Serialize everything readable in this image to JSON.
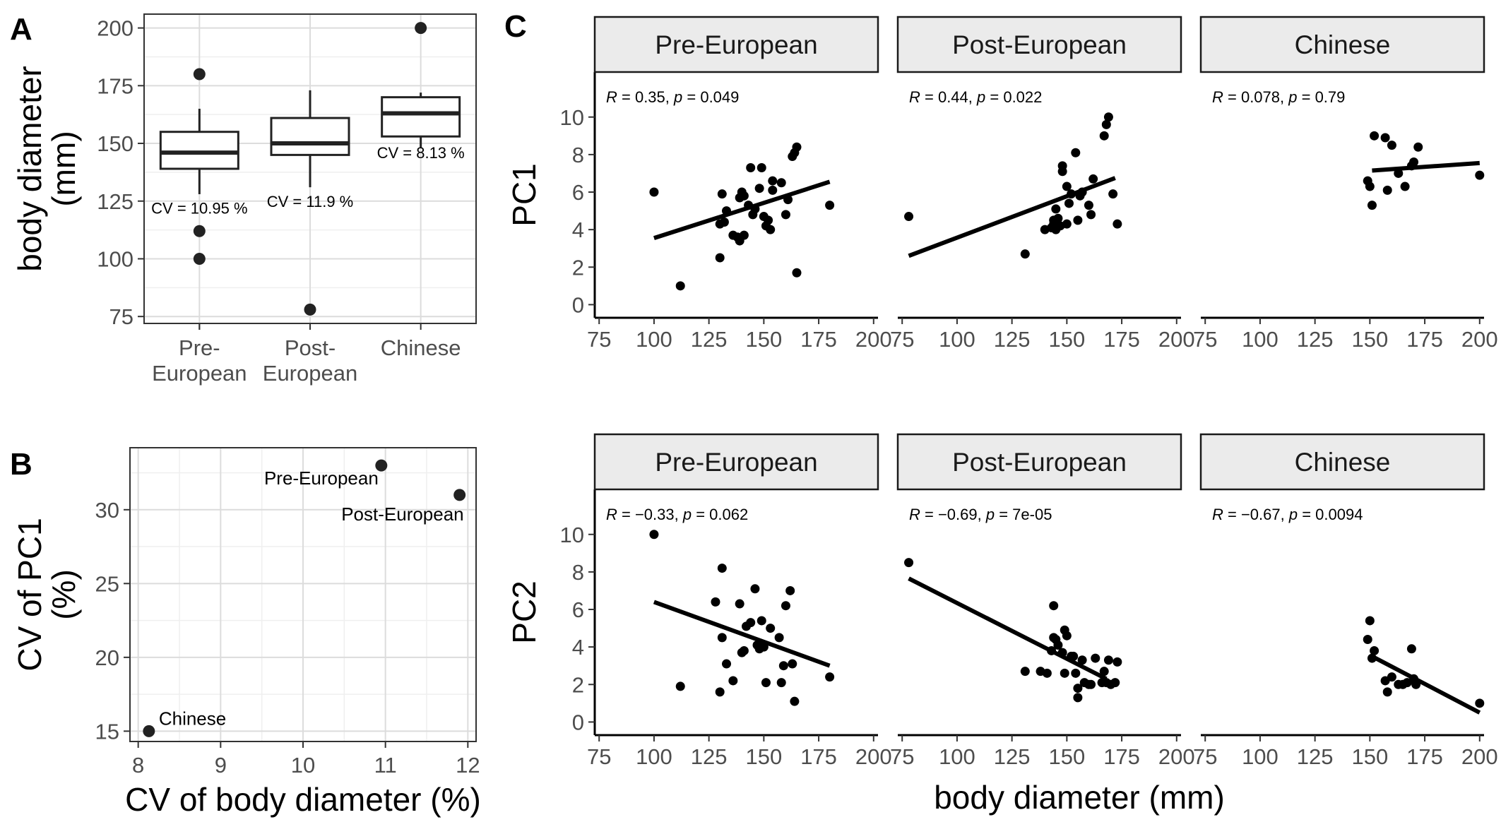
{
  "panel_tags": {
    "a": "A",
    "b": "B",
    "c": "C"
  },
  "shared_xlabel": "body diameter (mm)",
  "chart_data": [
    {
      "id": "A",
      "type": "box",
      "xlabel": "",
      "ylabel_lines": [
        "body diameter",
        "(mm)"
      ],
      "ylim": [
        72,
        206
      ],
      "yticks": [
        75,
        100,
        125,
        150,
        175,
        200
      ],
      "grid": true,
      "categories": [
        {
          "lines": [
            "Pre-",
            "European"
          ],
          "q1": 139,
          "median": 146,
          "q3": 155,
          "whisker_low": 128,
          "whisker_high": 165,
          "outliers": [
            180,
            112,
            100
          ],
          "cv_label": "CV = 10.95 %",
          "cv_y": 122
        },
        {
          "lines": [
            "Post-",
            "European"
          ],
          "q1": 145,
          "median": 150,
          "q3": 161,
          "whisker_low": 131,
          "whisker_high": 173,
          "outliers": [
            78
          ],
          "cv_label": "CV = 11.9 %",
          "cv_y": 125
        },
        {
          "lines": [
            "Chinese"
          ],
          "q1": 153,
          "median": 163,
          "q3": 170,
          "whisker_low": 148,
          "whisker_high": 172,
          "outliers": [
            200
          ],
          "cv_label": "CV = 8.13 %",
          "cv_y": 146
        }
      ]
    },
    {
      "id": "B",
      "type": "scatter",
      "xlabel": "CV of body diameter (%)",
      "ylabel_lines": [
        "CV of PC1",
        "(%)"
      ],
      "xlim": [
        7.9,
        12.1
      ],
      "ylim": [
        14.3,
        34.2
      ],
      "xticks": [
        8,
        9,
        10,
        11,
        12
      ],
      "yticks": [
        15,
        20,
        25,
        30
      ],
      "grid": true,
      "points": [
        {
          "label": "Pre-European",
          "x": 10.95,
          "y": 33.0
        },
        {
          "label": "Post-European",
          "x": 11.9,
          "y": 31.0
        },
        {
          "label": "Chinese",
          "x": 8.13,
          "y": 15.0
        }
      ]
    },
    {
      "id": "C",
      "type": "scatter",
      "facets": [
        "Pre-European",
        "Post-European",
        "Chinese"
      ],
      "xlabel": "body diameter (mm)",
      "xlim": [
        73,
        202
      ],
      "xticks": [
        75,
        100,
        125,
        150,
        175,
        200
      ],
      "ylim": [
        -0.7,
        12.4
      ],
      "yticks": [
        0,
        2,
        4,
        6,
        8,
        10
      ],
      "rows": [
        {
          "ylabel": "PC1",
          "panels": [
            {
              "stat": {
                "r": "R = 0.35,",
                "p": "p = 0.049"
              },
              "fit": [
                [
                  100,
                  3.55
                ],
                [
                  180,
                  6.55
                ]
              ],
              "points": [
                [
                  100,
                  6.0
                ],
                [
                  112,
                  1.0
                ],
                [
                  130,
                  4.3
                ],
                [
                  131,
                  5.9
                ],
                [
                  130,
                  2.5
                ],
                [
                  132,
                  4.4
                ],
                [
                  133,
                  5.0
                ],
                [
                  136,
                  3.7
                ],
                [
                  138,
                  3.6
                ],
                [
                  139,
                  3.4
                ],
                [
                  139,
                  5.7
                ],
                [
                  140,
                  6.0
                ],
                [
                  141,
                  5.8
                ],
                [
                  141,
                  3.7
                ],
                [
                  143,
                  5.3
                ],
                [
                  144,
                  7.3
                ],
                [
                  145,
                  4.8
                ],
                [
                  146,
                  5.1
                ],
                [
                  148,
                  6.2
                ],
                [
                  149,
                  7.3
                ],
                [
                  150,
                  4.7
                ],
                [
                  151,
                  4.2
                ],
                [
                  152,
                  4.5
                ],
                [
                  153,
                  4.0
                ],
                [
                  154,
                  6.1
                ],
                [
                  154,
                  6.6
                ],
                [
                  158,
                  6.5
                ],
                [
                  160,
                  4.8
                ],
                [
                  161,
                  5.6
                ],
                [
                  163,
                  7.9
                ],
                [
                  164,
                  8.1
                ],
                [
                  165,
                  8.4
                ],
                [
                  165,
                  1.7
                ],
                [
                  180,
                  5.3
                ]
              ]
            },
            {
              "stat": {
                "r": "R = 0.44,",
                "p": "p = 0.022"
              },
              "fit": [
                [
                  78,
                  2.6
                ],
                [
                  172,
                  6.75
                ]
              ],
              "points": [
                [
                  78,
                  4.7
                ],
                [
                  131,
                  2.7
                ],
                [
                  140,
                  4.0
                ],
                [
                  143,
                  4.1
                ],
                [
                  144,
                  4.5
                ],
                [
                  144,
                  4.3
                ],
                [
                  145,
                  5.1
                ],
                [
                  145,
                  4.0
                ],
                [
                  146,
                  4.6
                ],
                [
                  147,
                  4.2
                ],
                [
                  148,
                  7.1
                ],
                [
                  148,
                  7.4
                ],
                [
                  150,
                  6.3
                ],
                [
                  150,
                  4.3
                ],
                [
                  151,
                  5.4
                ],
                [
                  152,
                  5.9
                ],
                [
                  154,
                  8.1
                ],
                [
                  155,
                  4.5
                ],
                [
                  156,
                  5.8
                ],
                [
                  157,
                  6.0
                ],
                [
                  160,
                  5.3
                ],
                [
                  161,
                  4.8
                ],
                [
                  162,
                  6.7
                ],
                [
                  167,
                  9.0
                ],
                [
                  168,
                  9.6
                ],
                [
                  169,
                  10.0
                ],
                [
                  171,
                  5.9
                ],
                [
                  173,
                  4.3
                ]
              ]
            },
            {
              "stat": {
                "r": "R = 0.078,",
                "p": "p = 0.79"
              },
              "fit": [
                [
                  151,
                  7.15
                ],
                [
                  200,
                  7.55
                ]
              ],
              "points": [
                [
                  149,
                  6.6
                ],
                [
                  150,
                  6.3
                ],
                [
                  151,
                  5.3
                ],
                [
                  152,
                  9.0
                ],
                [
                  157,
                  8.9
                ],
                [
                  158,
                  6.1
                ],
                [
                  160,
                  8.5
                ],
                [
                  163,
                  7.0
                ],
                [
                  166,
                  6.3
                ],
                [
                  169,
                  7.4
                ],
                [
                  170,
                  7.6
                ],
                [
                  172,
                  8.4
                ],
                [
                  200,
                  6.9
                ]
              ]
            }
          ]
        },
        {
          "ylabel": "PC2",
          "panels": [
            {
              "stat": {
                "r": "R = −0.33,",
                "p": "p = 0.062"
              },
              "fit": [
                [
                  100,
                  6.4
                ],
                [
                  180,
                  3.0
                ]
              ],
              "points": [
                [
                  100,
                  10.0
                ],
                [
                  112,
                  1.9
                ],
                [
                  128,
                  6.4
                ],
                [
                  130,
                  1.6
                ],
                [
                  131,
                  8.2
                ],
                [
                  131,
                  4.5
                ],
                [
                  133,
                  3.1
                ],
                [
                  136,
                  2.2
                ],
                [
                  139,
                  6.3
                ],
                [
                  140,
                  3.7
                ],
                [
                  141,
                  3.8
                ],
                [
                  142,
                  5.1
                ],
                [
                  144,
                  5.3
                ],
                [
                  146,
                  7.1
                ],
                [
                  147,
                  4.1
                ],
                [
                  148,
                  3.9
                ],
                [
                  149,
                  5.4
                ],
                [
                  150,
                  4.0
                ],
                [
                  151,
                  2.1
                ],
                [
                  153,
                  5.0
                ],
                [
                  157,
                  4.5
                ],
                [
                  158,
                  2.1
                ],
                [
                  159,
                  3.0
                ],
                [
                  160,
                  6.2
                ],
                [
                  162,
                  7.0
                ],
                [
                  163,
                  3.1
                ],
                [
                  164,
                  1.1
                ],
                [
                  180,
                  2.4
                ]
              ]
            },
            {
              "stat": {
                "r": "R = −0.69,",
                "p": "p = 7e-05"
              },
              "fit": [
                [
                  78,
                  7.65
                ],
                [
                  168,
                  2.3
                ]
              ],
              "points": [
                [
                  78,
                  8.5
                ],
                [
                  131,
                  2.7
                ],
                [
                  138,
                  2.7
                ],
                [
                  141,
                  2.6
                ],
                [
                  143,
                  3.8
                ],
                [
                  144,
                  4.5
                ],
                [
                  144,
                  6.2
                ],
                [
                  145,
                  4.4
                ],
                [
                  146,
                  4.1
                ],
                [
                  148,
                  3.7
                ],
                [
                  149,
                  2.6
                ],
                [
                  149,
                  4.9
                ],
                [
                  150,
                  4.6
                ],
                [
                  152,
                  3.5
                ],
                [
                  153,
                  3.5
                ],
                [
                  154,
                  2.6
                ],
                [
                  155,
                  1.3
                ],
                [
                  155,
                  1.8
                ],
                [
                  157,
                  3.3
                ],
                [
                  158,
                  2.1
                ],
                [
                  160,
                  2.0
                ],
                [
                  161,
                  2.0
                ],
                [
                  163,
                  3.4
                ],
                [
                  166,
                  2.1
                ],
                [
                  167,
                  2.7
                ],
                [
                  168,
                  2.1
                ],
                [
                  169,
                  3.3
                ],
                [
                  170,
                  2.0
                ],
                [
                  172,
                  2.1
                ],
                [
                  173,
                  3.2
                ]
              ]
            },
            {
              "stat": {
                "r": "R = −0.67,",
                "p": "p = 0.0094"
              },
              "fit": [
                [
                  151,
                  3.5
                ],
                [
                  200,
                  0.5
                ]
              ],
              "points": [
                [
                  149,
                  4.4
                ],
                [
                  150,
                  5.4
                ],
                [
                  151,
                  3.4
                ],
                [
                  152,
                  3.8
                ],
                [
                  157,
                  2.2
                ],
                [
                  158,
                  1.6
                ],
                [
                  160,
                  2.4
                ],
                [
                  163,
                  2.0
                ],
                [
                  165,
                  2.0
                ],
                [
                  167,
                  2.1
                ],
                [
                  169,
                  3.9
                ],
                [
                  170,
                  2.3
                ],
                [
                  171,
                  2.0
                ],
                [
                  200,
                  1.0
                ]
              ]
            }
          ]
        }
      ]
    }
  ]
}
